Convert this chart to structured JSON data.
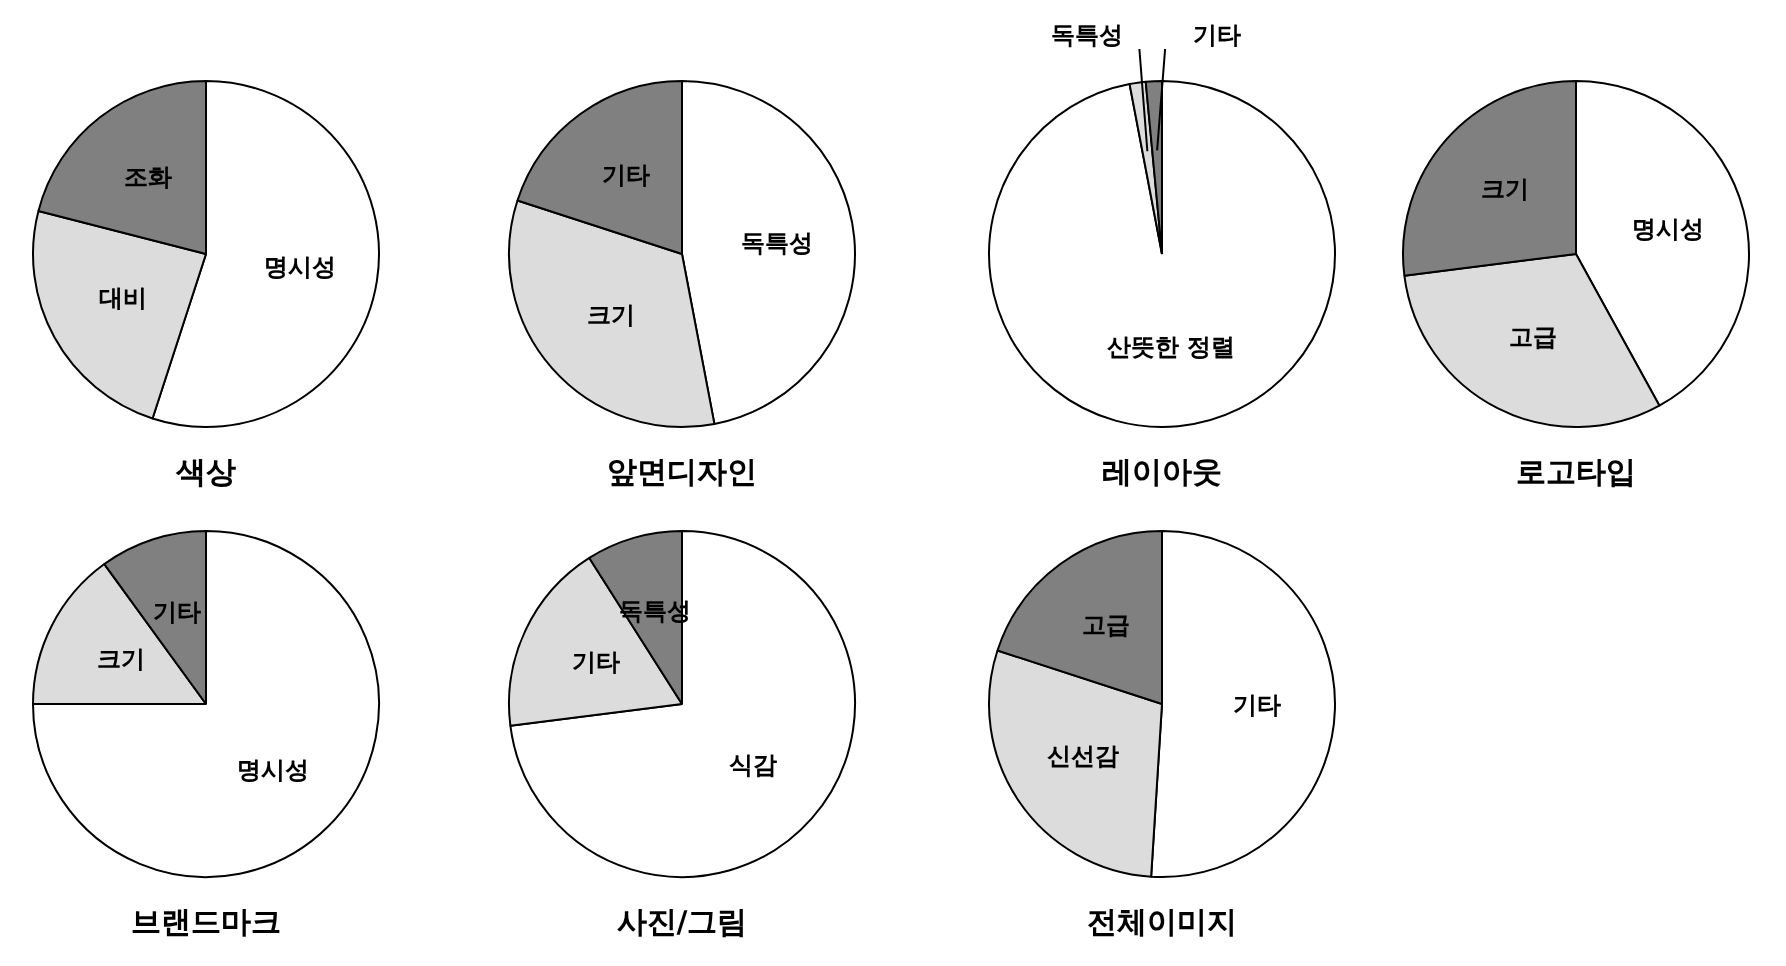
{
  "chart_data": [
    {
      "type": "pie",
      "title": "색상",
      "categories": [
        "명시성",
        "대비",
        "조화"
      ],
      "values": [
        55,
        24,
        21
      ],
      "colors": [
        "#ffffff",
        "#dcdcdc",
        "#808080"
      ]
    },
    {
      "type": "pie",
      "title": "앞면디자인",
      "categories": [
        "독특성",
        "크기",
        "기타"
      ],
      "values": [
        47,
        33,
        20
      ],
      "colors": [
        "#ffffff",
        "#dcdcdc",
        "#808080"
      ]
    },
    {
      "type": "pie",
      "title": "레이아웃",
      "categories": [
        "산뜻한 정렬",
        "독특성",
        "기타"
      ],
      "values": [
        97,
        1.5,
        1.5
      ],
      "colors": [
        "#ffffff",
        "#dcdcdc",
        "#808080"
      ]
    },
    {
      "type": "pie",
      "title": "로고타입",
      "categories": [
        "명시성",
        "고급",
        "크기"
      ],
      "values": [
        42,
        31,
        27
      ],
      "colors": [
        "#ffffff",
        "#dcdcdc",
        "#808080"
      ]
    },
    {
      "type": "pie",
      "title": "브랜드마크",
      "categories": [
        "명시성",
        "크기",
        "기타"
      ],
      "values": [
        75,
        15,
        10
      ],
      "colors": [
        "#ffffff",
        "#dcdcdc",
        "#808080"
      ]
    },
    {
      "type": "pie",
      "title": "사진/그림",
      "categories": [
        "식감",
        "기타",
        "독특성"
      ],
      "values": [
        73,
        18,
        9
      ],
      "colors": [
        "#ffffff",
        "#dcdcdc",
        "#808080"
      ]
    },
    {
      "type": "pie",
      "title": "전체이미지",
      "categories": [
        "기타",
        "신선감",
        "고급"
      ],
      "values": [
        51,
        29,
        20
      ],
      "colors": [
        "#ffffff",
        "#dcdcdc",
        "#808080"
      ]
    }
  ]
}
